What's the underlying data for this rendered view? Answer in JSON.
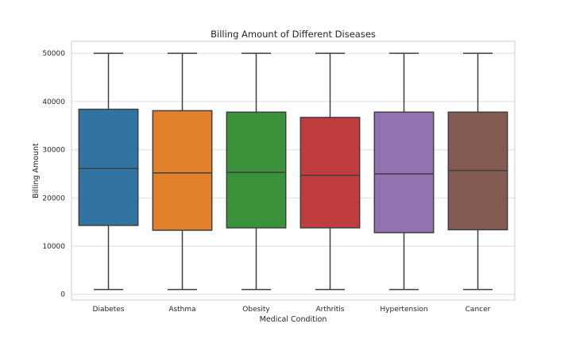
{
  "chart_data": {
    "type": "box",
    "title": "Billing Amount of Different Diseases",
    "xlabel": "Medical Condition",
    "ylabel": "Billing Amount",
    "ylim": [
      -1200,
      52500
    ],
    "yticks": [
      0,
      10000,
      20000,
      30000,
      40000,
      50000
    ],
    "ytick_labels": [
      "0",
      "10000",
      "20000",
      "30000",
      "40000",
      "50000"
    ],
    "grid": true,
    "categories": [
      "Diabetes",
      "Asthma",
      "Obesity",
      "Arthritis",
      "Hypertension",
      "Cancer"
    ],
    "colors": [
      "#3274a1",
      "#e1812c",
      "#3a923a",
      "#c03d3e",
      "#9372b2",
      "#845b53"
    ],
    "series": [
      {
        "min": 1000,
        "q1": 14300,
        "median": 26100,
        "q3": 38400,
        "max": 50000
      },
      {
        "min": 1000,
        "q1": 13300,
        "median": 25200,
        "q3": 38100,
        "max": 50000
      },
      {
        "min": 1000,
        "q1": 13800,
        "median": 25300,
        "q3": 37800,
        "max": 50000
      },
      {
        "min": 1000,
        "q1": 13800,
        "median": 24700,
        "q3": 36700,
        "max": 50000
      },
      {
        "min": 1000,
        "q1": 12800,
        "median": 25000,
        "q3": 37800,
        "max": 50000
      },
      {
        "min": 1000,
        "q1": 13400,
        "median": 25700,
        "q3": 37800,
        "max": 50000
      }
    ]
  }
}
